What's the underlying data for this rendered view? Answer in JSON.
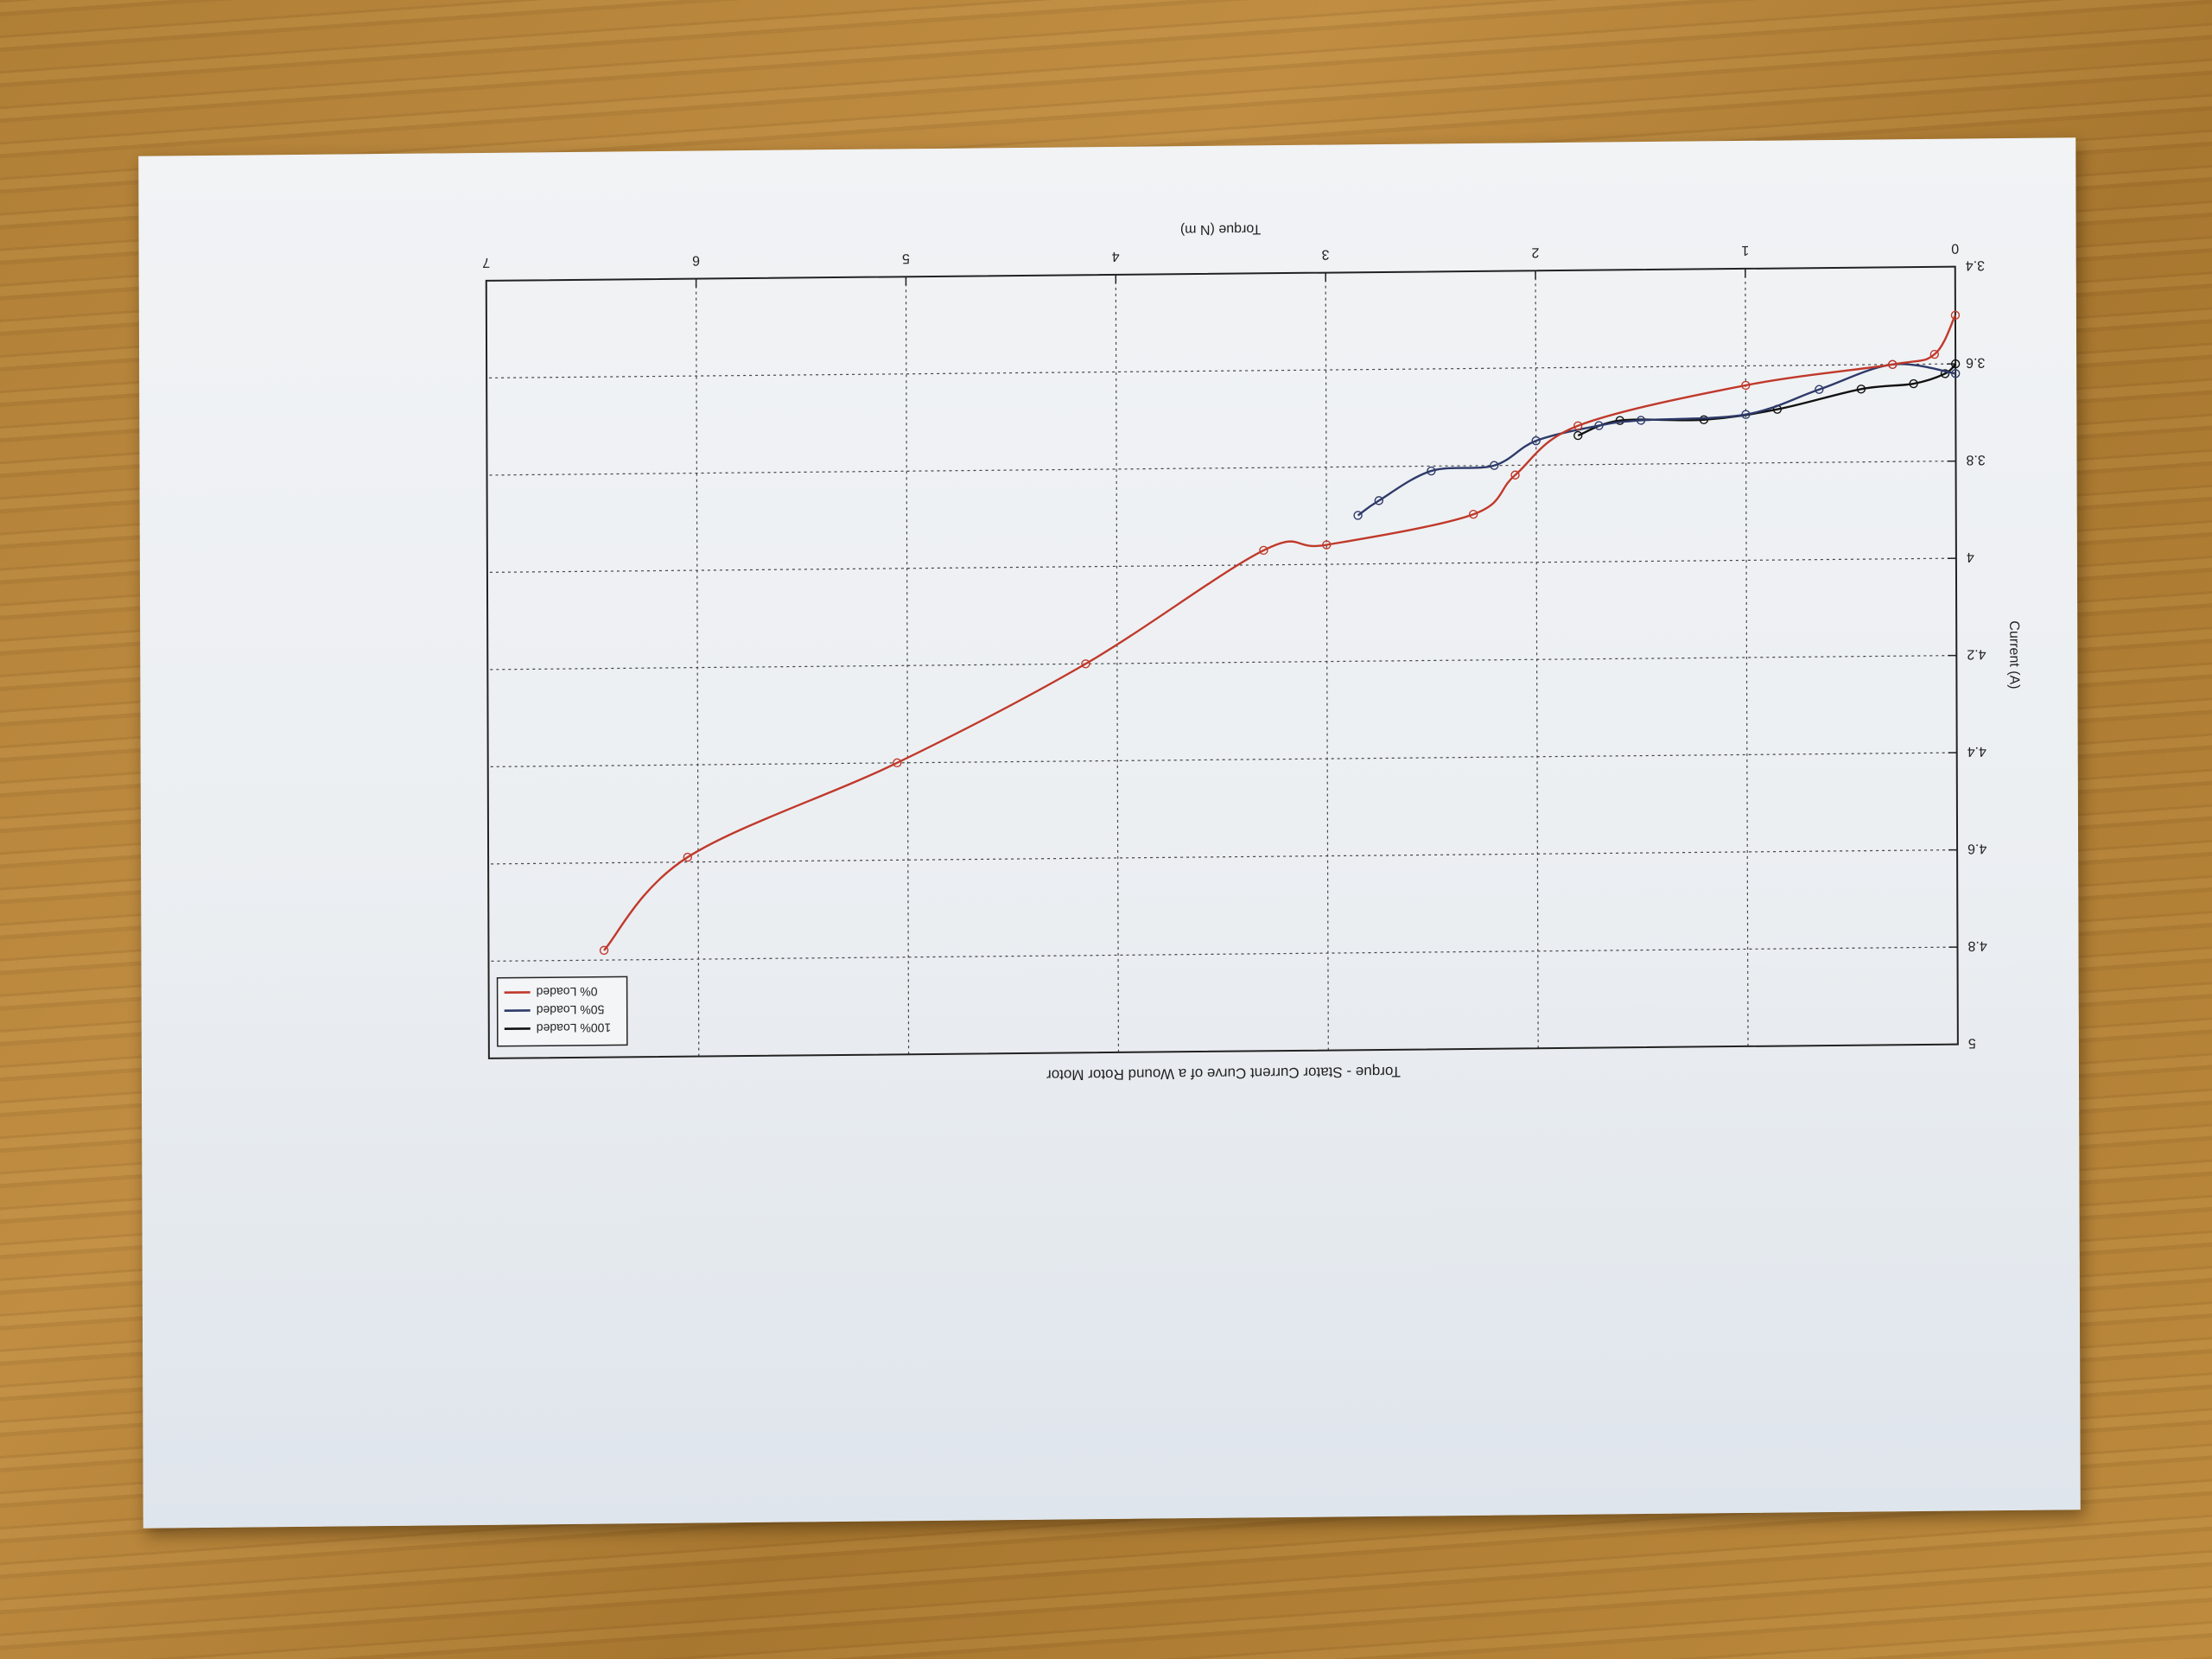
{
  "chart_data": {
    "type": "line",
    "title": "Torque - Stator Current Curve of a Wound Rotor Motor",
    "xlabel": "Torque (N m)",
    "ylabel": "Current (A)",
    "xlim": [
      0,
      7
    ],
    "ylim": [
      3.4,
      5
    ],
    "x_ticks": [
      "0",
      "1",
      "2",
      "3",
      "4",
      "5",
      "6",
      "7"
    ],
    "y_ticks": [
      "3.4",
      "3.6",
      "3.8",
      "4",
      "4.2",
      "4.4",
      "4.6",
      "4.8",
      "5"
    ],
    "grid": true,
    "legend_position": "top-right",
    "series": [
      {
        "name": "100% Loaded",
        "color": "#111111",
        "points": [
          [
            0.0,
            3.6
          ],
          [
            0.05,
            3.62
          ],
          [
            0.2,
            3.64
          ],
          [
            0.45,
            3.65
          ],
          [
            0.85,
            3.69
          ],
          [
            1.2,
            3.71
          ],
          [
            1.6,
            3.71
          ],
          [
            1.8,
            3.74
          ]
        ]
      },
      {
        "name": "50% Loaded",
        "color": "#2e3a6a",
        "points": [
          [
            0.0,
            3.62
          ],
          [
            0.3,
            3.6
          ],
          [
            0.65,
            3.65
          ],
          [
            1.0,
            3.7
          ],
          [
            1.5,
            3.71
          ],
          [
            1.7,
            3.72
          ],
          [
            2.0,
            3.75
          ],
          [
            2.2,
            3.8
          ],
          [
            2.5,
            3.81
          ],
          [
            2.75,
            3.87
          ],
          [
            2.85,
            3.9
          ]
        ]
      },
      {
        "name": "0% Loaded",
        "color": "#c0392b",
        "points": [
          [
            0.0,
            3.5
          ],
          [
            0.1,
            3.58
          ],
          [
            0.3,
            3.6
          ],
          [
            1.0,
            3.64
          ],
          [
            1.8,
            3.72
          ],
          [
            2.1,
            3.82
          ],
          [
            2.3,
            3.9
          ],
          [
            3.0,
            3.96
          ],
          [
            3.3,
            3.97
          ],
          [
            4.15,
            4.2
          ],
          [
            5.05,
            4.4
          ],
          [
            6.05,
            4.59
          ],
          [
            6.45,
            4.78
          ]
        ]
      }
    ]
  }
}
